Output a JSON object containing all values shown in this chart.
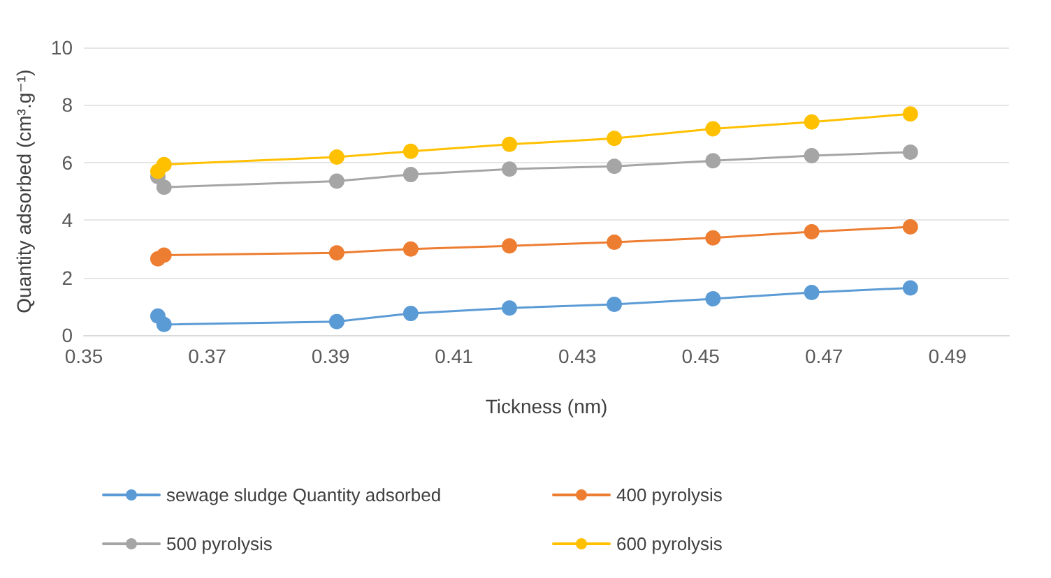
{
  "chart_data": {
    "type": "line",
    "xlabel": "Tickness (nm)",
    "ylabel": "Quantity adsorbed (cm³.g⁻¹)",
    "x": [
      0.362,
      0.363,
      0.391,
      0.403,
      0.419,
      0.436,
      0.452,
      0.468,
      0.484
    ],
    "series": [
      {
        "name": "sewage sludge Quantity adsorbed",
        "color": "#5b9bd5",
        "values": [
          0.66,
          0.37,
          0.47,
          0.75,
          0.94,
          1.07,
          1.26,
          1.48,
          1.64
        ]
      },
      {
        "name": "400 pyrolysis",
        "color": "#ed7d31",
        "values": [
          2.65,
          2.78,
          2.86,
          2.99,
          3.1,
          3.23,
          3.38,
          3.59,
          3.76
        ]
      },
      {
        "name": "500 pyrolysis",
        "color": "#a5a5a5",
        "values": [
          5.51,
          5.14,
          5.35,
          5.58,
          5.77,
          5.87,
          6.06,
          6.24,
          6.36
        ]
      },
      {
        "name": "600 pyrolysis",
        "color": "#ffc000",
        "values": [
          5.69,
          5.93,
          6.19,
          6.39,
          6.63,
          6.84,
          7.17,
          7.41,
          7.69
        ]
      }
    ],
    "xlim": [
      0.35,
      0.5
    ],
    "xticks": [
      0.35,
      0.37,
      0.39,
      0.41,
      0.43,
      0.45,
      0.47,
      0.49
    ],
    "ylim": [
      0,
      10
    ],
    "yticks": [
      0,
      2,
      4,
      6,
      8,
      10
    ],
    "grid": "y",
    "legend": "bottom",
    "marker": "circle",
    "line_style": "solid"
  }
}
